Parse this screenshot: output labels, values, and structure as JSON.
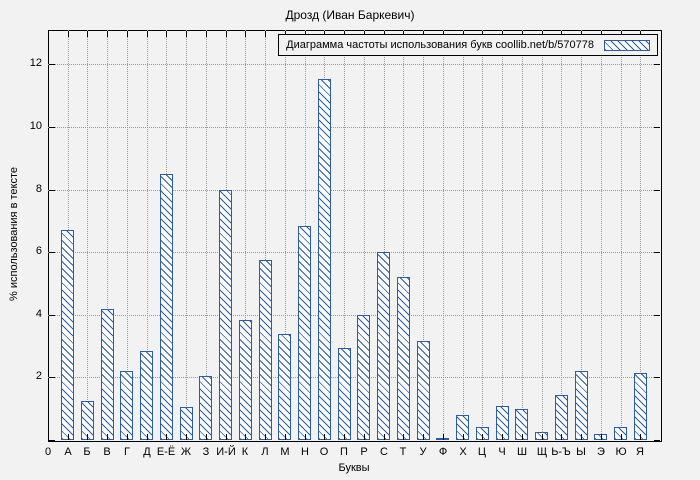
{
  "chart_data": {
    "type": "bar",
    "title": "Дрозд (Иван Баркевич)",
    "legend": "Диаграмма частоты использования букв coollib.net/b/570778",
    "legend_position": "top-right",
    "xlabel": "Буквы",
    "ylabel": "% использования в тексте",
    "x_origin_label": "0",
    "categories": [
      "А",
      "Б",
      "В",
      "Г",
      "Д",
      "Е-Ё",
      "Ж",
      "З",
      "И-Й",
      "К",
      "Л",
      "М",
      "Н",
      "О",
      "П",
      "Р",
      "С",
      "Т",
      "У",
      "Ф",
      "Х",
      "Ц",
      "Ч",
      "Ш",
      "Щ",
      "Ь-Ъ",
      "Ы",
      "Э",
      "Ю",
      "Я"
    ],
    "values": [
      6.7,
      1.25,
      4.2,
      2.2,
      2.85,
      8.5,
      1.05,
      2.05,
      8.0,
      3.85,
      5.75,
      3.4,
      6.85,
      11.55,
      2.95,
      4.0,
      6.0,
      5.2,
      3.15,
      0.05,
      0.8,
      0.4,
      1.1,
      1.0,
      0.25,
      1.45,
      2.2,
      0.2,
      0.4,
      2.15
    ],
    "yticks": [
      0,
      2,
      4,
      6,
      8,
      10,
      12
    ],
    "ylim": [
      0,
      13.1
    ],
    "grid": true,
    "hatch": "diagonal",
    "colors": {
      "bar_edge": "#2a5ca8",
      "hatch": "#2a5ca8",
      "grid": "#9a9a9a",
      "background": "#f2f2f2",
      "text": "#000000"
    }
  }
}
